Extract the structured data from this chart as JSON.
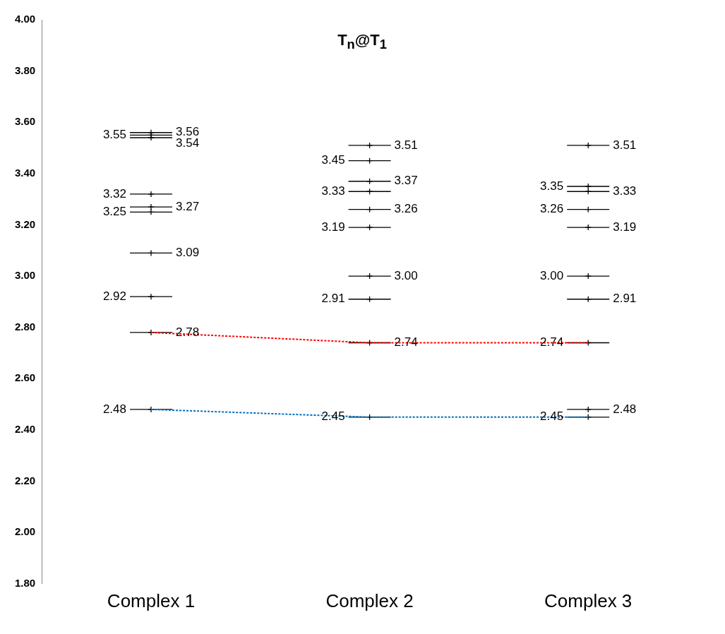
{
  "chart_data": {
    "type": "scatter",
    "title": "T$_{n}$@T$_{1}$",
    "categories": [
      "Complex 1",
      "Complex 2",
      "Complex 3"
    ],
    "ylim": [
      1.8,
      4
    ],
    "yticks": [
      {
        "value": 1.8,
        "label": "1.80"
      },
      {
        "value": 2,
        "label": "2.00"
      },
      {
        "value": 2.2,
        "label": "2.20"
      },
      {
        "value": 2.4,
        "label": "2.40"
      },
      {
        "value": 2.6,
        "label": "2.60"
      },
      {
        "value": 2.8,
        "label": "2.80"
      },
      {
        "value": 3,
        "label": "3.00"
      },
      {
        "value": 3.2,
        "label": "3.20"
      },
      {
        "value": 3.4,
        "label": "3.40"
      },
      {
        "value": 3.6,
        "label": "3.60"
      },
      {
        "value": 3.8,
        "label": "3.80"
      },
      {
        "value": 4,
        "label": "4.00"
      }
    ],
    "grid": false,
    "legend": false,
    "series": [
      {
        "marker": "cross",
        "color": "#000000",
        "x": [
          "Complex 1",
          "Complex 1",
          "Complex 1",
          "Complex 1",
          "Complex 1",
          "Complex 1",
          "Complex 1",
          "Complex 1",
          "Complex 1",
          "Complex 1"
        ],
        "values": [
          3.56,
          3.55,
          3.54,
          3.32,
          3.27,
          3.25,
          3.09,
          2.92,
          2.78,
          2.48
        ],
        "value_labels": [
          "3.56",
          "3.55",
          "3.54",
          "3.32",
          "3.27",
          "3.25",
          "3.09",
          "2.92",
          "2.78",
          "2.48"
        ]
      },
      {
        "marker": "cross",
        "color": "#000000",
        "x": [
          "Complex 2",
          "Complex 2",
          "Complex 2",
          "Complex 2",
          "Complex 2",
          "Complex 2",
          "Complex 2",
          "Complex 2",
          "Complex 2",
          "Complex 2"
        ],
        "values": [
          3.51,
          3.45,
          3.37,
          3.33,
          3.26,
          3.19,
          3.0,
          2.91,
          2.74,
          2.45
        ],
        "value_labels": [
          "3.51",
          "3.45",
          "3.37",
          "3.33",
          "3.26",
          "3.19",
          "3.00",
          "2.91",
          "2.74",
          "2.45"
        ]
      },
      {
        "marker": "cross",
        "color": "#000000",
        "x": [
          "Complex 3",
          "Complex 3",
          "Complex 3",
          "Complex 3",
          "Complex 3",
          "Complex 3",
          "Complex 3",
          "Complex 3",
          "Complex 3",
          "Complex 3"
        ],
        "values": [
          3.51,
          3.35,
          3.33,
          3.26,
          3.19,
          3.0,
          2.91,
          2.74,
          2.48,
          2.45
        ],
        "value_labels": [
          "3.51",
          "3.35",
          "3.33",
          "3.26",
          "3.19",
          "3.00",
          "2.91",
          "2.74",
          "2.48",
          "2.45"
        ]
      },
      {
        "type": "line",
        "color": "#ff0000",
        "line_style": "dashed",
        "x": [
          "Complex 1",
          "Complex 2",
          "Complex 3"
        ],
        "values": [
          2.78,
          2.74,
          2.74
        ]
      },
      {
        "type": "line",
        "color": "#0070c0",
        "line_style": "dashed",
        "x": [
          "Complex 1",
          "Complex 2",
          "Complex 3"
        ],
        "values": [
          2.48,
          2.45,
          2.45
        ]
      }
    ]
  }
}
